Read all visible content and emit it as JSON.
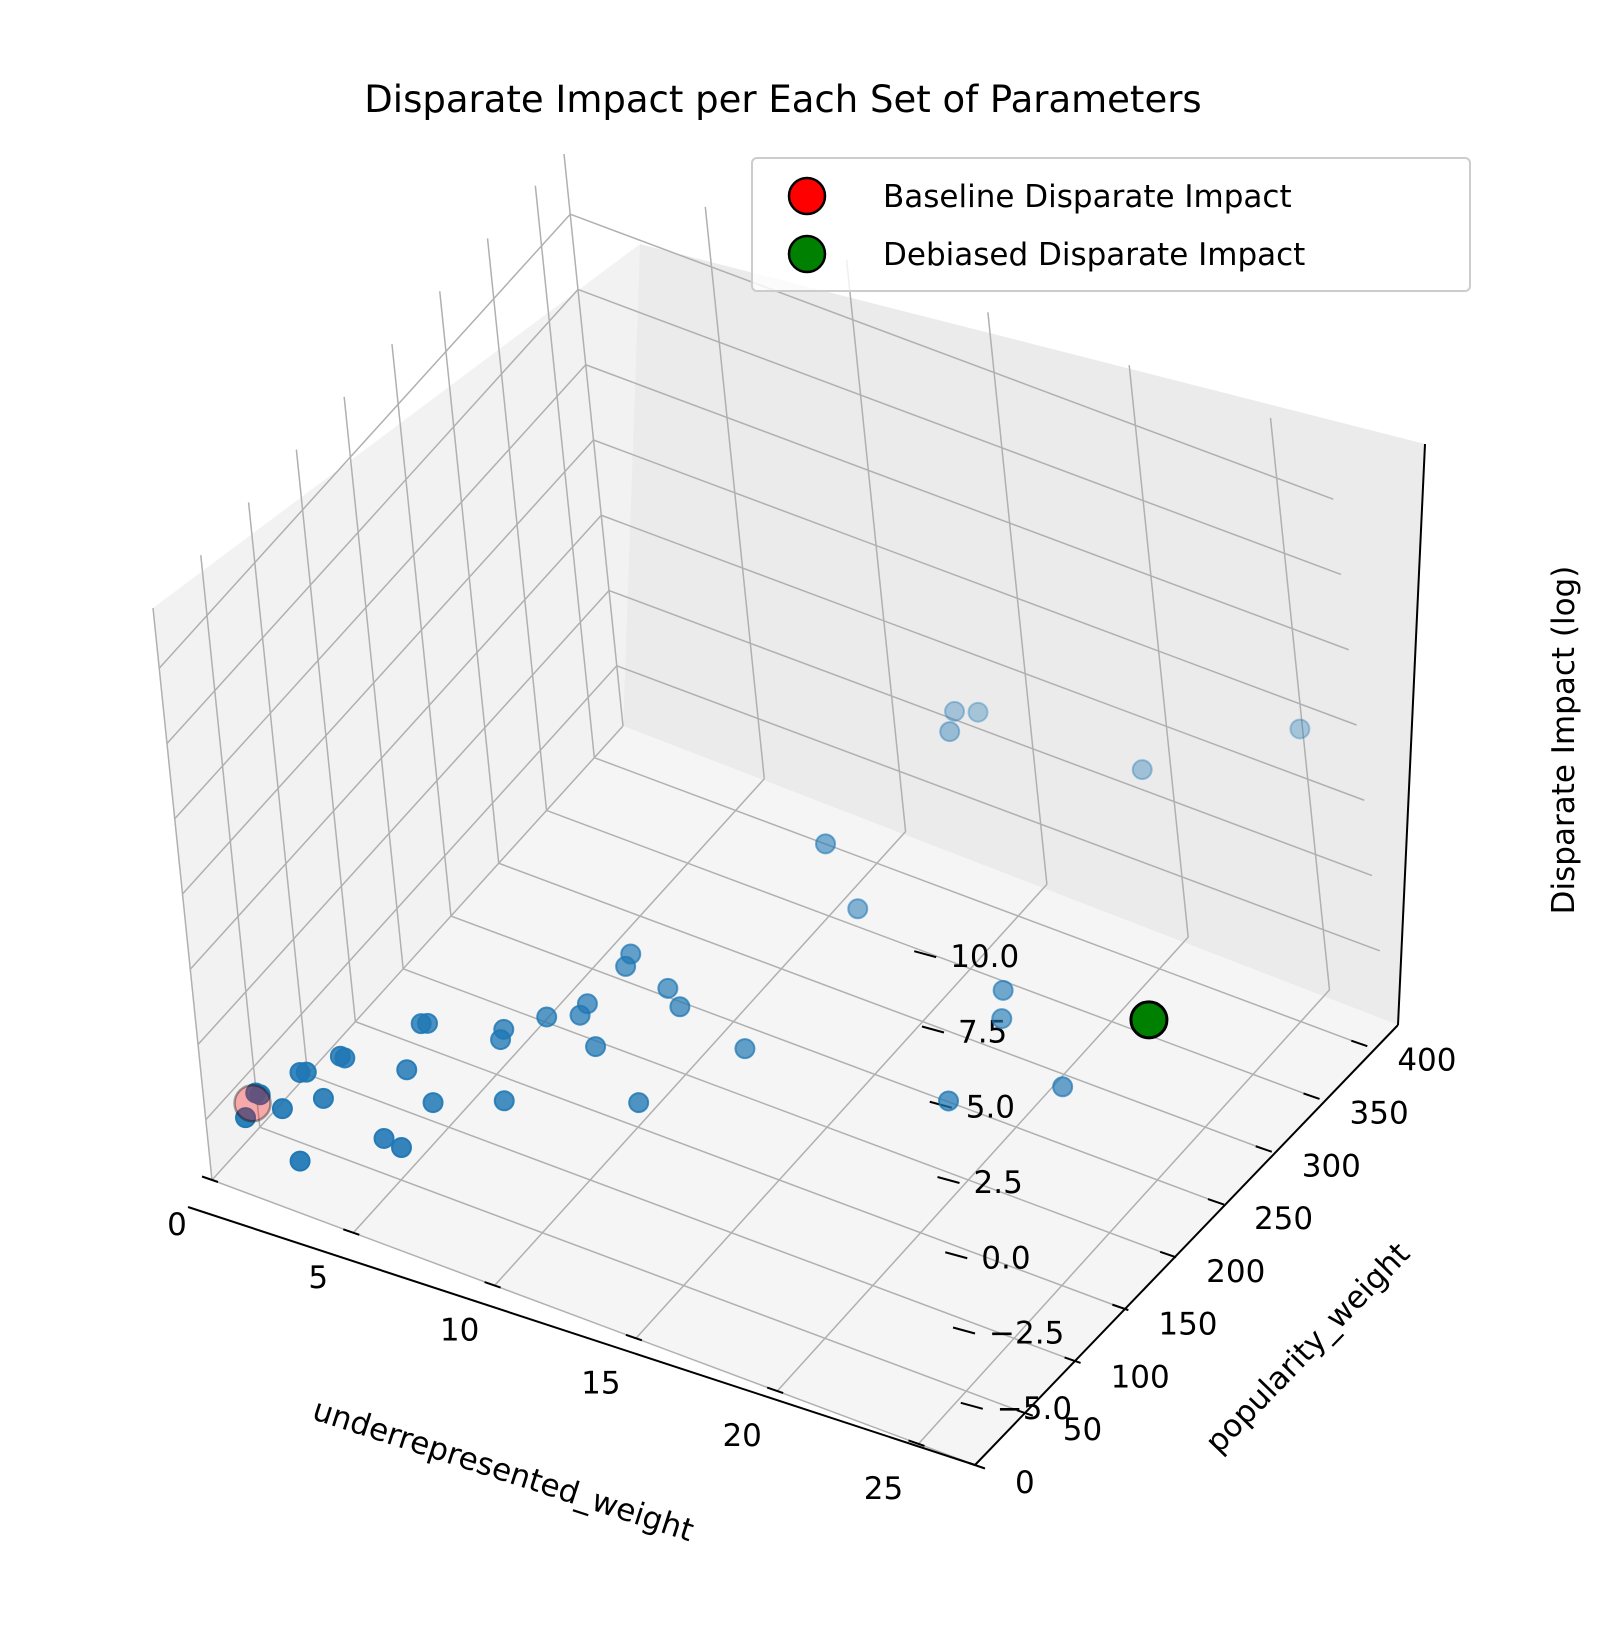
{
  "chart_data": {
    "type": "scatter",
    "projection": "3d",
    "title": "Disparate Impact per Each Set of Parameters",
    "xlabel": "underrepresented_weight",
    "ylabel": "popularity_weight",
    "zlabel": "Disparate Impact (log)",
    "xlim": [
      0,
      27
    ],
    "ylim": [
      0,
      430
    ],
    "zlim": [
      -7,
      12
    ],
    "x_ticks": [
      "0",
      "5",
      "10",
      "15",
      "20",
      "25"
    ],
    "y_ticks": [
      "0",
      "50",
      "100",
      "150",
      "200",
      "250",
      "300",
      "350",
      "400"
    ],
    "z_ticks": [
      "−5.0",
      "−2.5",
      "0.0",
      "2.5",
      "5.0",
      "7.5",
      "10.0"
    ],
    "grid": true,
    "legend_position": "upper-right",
    "colors": {
      "points": "#1f77b4",
      "baseline": "#ff0000",
      "debiased": "#008000",
      "pane_left": "#f2f2f2",
      "pane_right": "#ebebeb",
      "pane_floor": "#f5f5f5",
      "grid": "#b0b0b0"
    },
    "series": [
      {
        "name": "",
        "color": "#1f77b4",
        "points": [
          {
            "x": 1,
            "y": 28,
            "z": -4.8
          },
          {
            "x": 1,
            "y": 24,
            "z": -4.6
          },
          {
            "x": 1,
            "y": 12,
            "z": -5.0
          },
          {
            "x": 2,
            "y": 48,
            "z": -4.4
          },
          {
            "x": 2,
            "y": 42,
            "z": -4.2
          },
          {
            "x": 2,
            "y": 22,
            "z": -4.7
          },
          {
            "x": 3,
            "y": 60,
            "z": -4.0
          },
          {
            "x": 3,
            "y": 56,
            "z": -3.8
          },
          {
            "x": 3,
            "y": 36,
            "z": -4.5
          },
          {
            "x": 3,
            "y": 8,
            "z": -5.6
          },
          {
            "x": 5,
            "y": 90,
            "z": -3.2
          },
          {
            "x": 5,
            "y": 84,
            "z": -3.0
          },
          {
            "x": 5,
            "y": 66,
            "z": -3.9
          },
          {
            "x": 5,
            "y": 38,
            "z": -5.2
          },
          {
            "x": 6,
            "y": 62,
            "z": -4.5
          },
          {
            "x": 6,
            "y": 28,
            "z": -4.8
          },
          {
            "x": 7,
            "y": 110,
            "z": -3.4
          },
          {
            "x": 7,
            "y": 106,
            "z": -3.6
          },
          {
            "x": 8,
            "y": 126,
            "z": -3.2
          },
          {
            "x": 8,
            "y": 78,
            "z": -4.3
          },
          {
            "x": 9,
            "y": 140,
            "z": -2.9
          },
          {
            "x": 9,
            "y": 132,
            "z": -3.0
          },
          {
            "x": 10,
            "y": 160,
            "z": -1.6
          },
          {
            "x": 10,
            "y": 154,
            "z": -1.8
          },
          {
            "x": 10,
            "y": 118,
            "z": -3.2
          },
          {
            "x": 11,
            "y": 166,
            "z": -2.6
          },
          {
            "x": 12,
            "y": 150,
            "z": -2.3
          },
          {
            "x": 12,
            "y": 102,
            "z": -3.8
          },
          {
            "x": 14,
            "y": 156,
            "z": -3.2
          },
          {
            "x": 15,
            "y": 382,
            "z": 0.4
          },
          {
            "x": 15,
            "y": 360,
            "z": 1.2
          },
          {
            "x": 15,
            "y": 250,
            "z": -1.5
          },
          {
            "x": 15,
            "y": 226,
            "z": 1.5
          },
          {
            "x": 16,
            "y": 328,
            "z": 2.0
          },
          {
            "x": 22,
            "y": 352,
            "z": 2.0
          },
          {
            "x": 22,
            "y": 200,
            "z": 0.0
          },
          {
            "x": 22,
            "y": 196,
            "z": -0.8
          },
          {
            "x": 22,
            "y": 138,
            "z": -1.5
          },
          {
            "x": 25,
            "y": 170,
            "z": -1.1
          },
          {
            "x": 26,
            "y": 402,
            "z": 3.0
          },
          {
            "x": 26,
            "y": 232,
            "z": -0.7
          }
        ]
      },
      {
        "name": "Baseline Disparate Impact",
        "color": "#ff0000",
        "points": [
          {
            "x": 1,
            "y": 20,
            "z": -4.8
          }
        ]
      },
      {
        "name": "Debiased Disparate Impact",
        "color": "#008000",
        "points": [
          {
            "x": 26,
            "y": 232,
            "z": -0.7
          }
        ]
      }
    ]
  }
}
